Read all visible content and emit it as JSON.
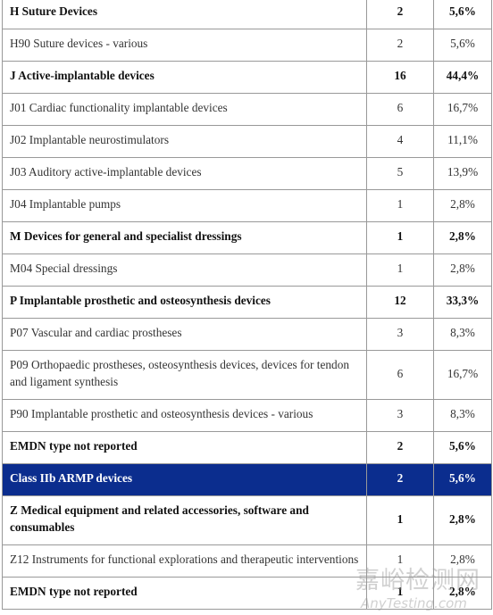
{
  "table": {
    "rows": [
      {
        "label": "H Suture Devices",
        "count": "2",
        "percent": "5,6%",
        "bold": true
      },
      {
        "label": "H90 Suture devices - various",
        "count": "2",
        "percent": "5,6%"
      },
      {
        "label": "J Active-implantable devices",
        "count": "16",
        "percent": "44,4%",
        "bold": true
      },
      {
        "label": "J01 Cardiac functionality implantable devices",
        "count": "6",
        "percent": "16,7%"
      },
      {
        "label": "J02 Implantable neurostimulators",
        "count": "4",
        "percent": "11,1%"
      },
      {
        "label": "J03 Auditory active-implantable devices",
        "count": "5",
        "percent": "13,9%"
      },
      {
        "label": "J04 Implantable pumps",
        "count": "1",
        "percent": "2,8%"
      },
      {
        "label": "M Devices for general and specialist dressings",
        "count": "1",
        "percent": "2,8%",
        "bold": true
      },
      {
        "label": "M04 Special dressings",
        "count": "1",
        "percent": "2,8%"
      },
      {
        "label": "P Implantable prosthetic and osteosynthesis devices",
        "count": "12",
        "percent": "33,3%",
        "bold": true
      },
      {
        "label": "P07 Vascular and cardiac prostheses",
        "count": "3",
        "percent": "8,3%"
      },
      {
        "label": "P09 Orthopaedic prostheses, osteosynthesis devices, devices for tendon and ligament synthesis",
        "count": "6",
        "percent": "16,7%"
      },
      {
        "label": "P90 Implantable prosthetic and osteosynthesis devices - various",
        "count": "3",
        "percent": "8,3%"
      },
      {
        "label": "EMDN type not reported",
        "count": "2",
        "percent": "5,6%",
        "bold": true
      },
      {
        "label": "Class IIb ARMP devices",
        "count": "2",
        "percent": "5,6%",
        "bold": true,
        "highlight": true
      },
      {
        "label": "Z Medical equipment and related accessories, software and consumables",
        "count": "1",
        "percent": "2,8%",
        "bold": true
      },
      {
        "label": "Z12 Instruments for functional explorations and therapeutic interventions",
        "count": "1",
        "percent": "2,8%"
      },
      {
        "label": "EMDN type not reported",
        "count": "1",
        "percent": "2,8%",
        "bold": true
      }
    ]
  },
  "watermark": {
    "title": "嘉峪检测网",
    "subtitle": "AnyTesting.com"
  }
}
